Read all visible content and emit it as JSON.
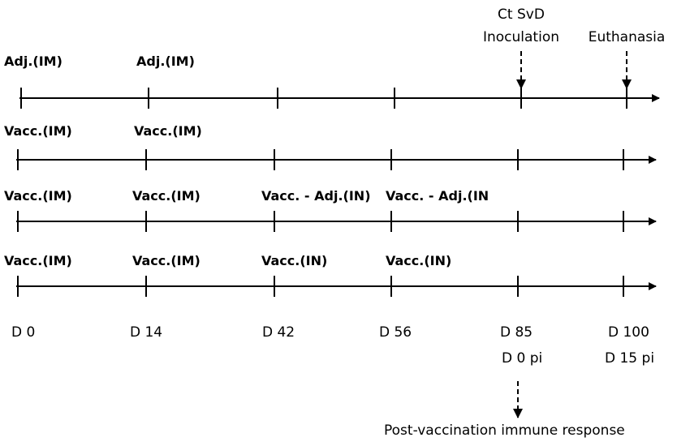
{
  "top_events": {
    "inoculation_line1": "Ct SvD",
    "inoculation_line2": "Inoculation",
    "euthanasia": "Euthanasia"
  },
  "timelines": [
    {
      "labels": [
        "Adj.(IM)",
        "Adj.(IM)"
      ]
    },
    {
      "labels": [
        "Vacc.(IM)",
        "Vacc.(IM)"
      ]
    },
    {
      "labels": [
        "Vacc.(IM)",
        "Vacc.(IM)",
        "Vacc. - Adj.(IN)",
        "Vacc. - Adj.(IN"
      ]
    },
    {
      "labels": [
        "Vacc.(IM)",
        "Vacc.(IM)",
        "Vacc.(IN)",
        "Vacc.(IN)"
      ]
    }
  ],
  "days": [
    "D 0",
    "D 14",
    "D 42",
    "D 56",
    "D 85",
    "D 100"
  ],
  "post_inoculation_days": [
    "D 0 pi",
    "D 15 pi"
  ],
  "bottom_note": "Post-vaccination immune response",
  "colors": {
    "line": "#000000",
    "text": "#000000",
    "background": "#ffffff"
  }
}
